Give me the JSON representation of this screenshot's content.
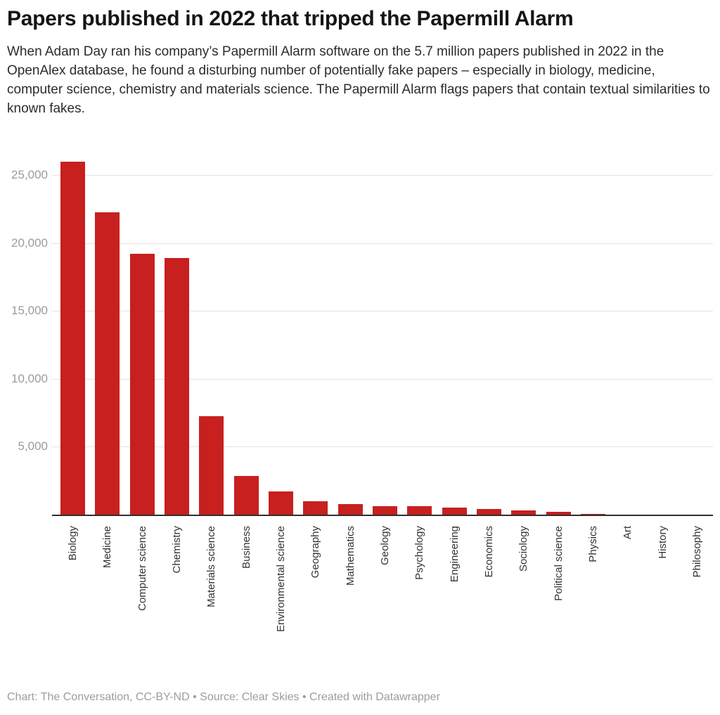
{
  "header": {
    "title": "Papers published in 2022 that tripped the Papermill Alarm",
    "description": "When Adam Day ran his company’s Papermill Alarm software on the 5.7 million papers published in 2022 in the OpenAlex database, he found a disturbing number of potentially fake papers  – especially in biology, medicine, computer science, chemistry and materials science. The Papermill Alarm flags papers that contain textual similarities to known fakes."
  },
  "chart_data": {
    "type": "bar",
    "title": "Papers published in 2022 that tripped the Papermill Alarm",
    "categories": [
      "Biology",
      "Medicine",
      "Computer science",
      "Chemistry",
      "Materials science",
      "Business",
      "Environmental science",
      "Geography",
      "Mathematics",
      "Geology",
      "Psychology",
      "Engineering",
      "Economics",
      "Sociology",
      "Political science",
      "Physics",
      "Art",
      "History",
      "Philosophy"
    ],
    "values": [
      26000,
      22300,
      19200,
      18900,
      7250,
      2850,
      1700,
      1000,
      760,
      640,
      640,
      530,
      430,
      330,
      190,
      30,
      20,
      12,
      8
    ],
    "xlabel": "",
    "ylabel": "",
    "ylim": [
      0,
      27300
    ],
    "y_ticks": [
      5000,
      10000,
      15000,
      20000,
      25000
    ],
    "y_tick_labels": [
      "5,000",
      "10,000",
      "15,000",
      "20,000",
      "25,000"
    ],
    "grid": true,
    "legend": "none",
    "colors": {
      "bar": "#c7201e",
      "grid": "#e4e4e4",
      "axis": "#2f2f2f",
      "tick_label": "#9c9c9c",
      "category_label": "#333333"
    }
  },
  "footer": {
    "text": "Chart: The Conversation, CC-BY-ND • Source: Clear Skies • Created with Datawrapper"
  }
}
